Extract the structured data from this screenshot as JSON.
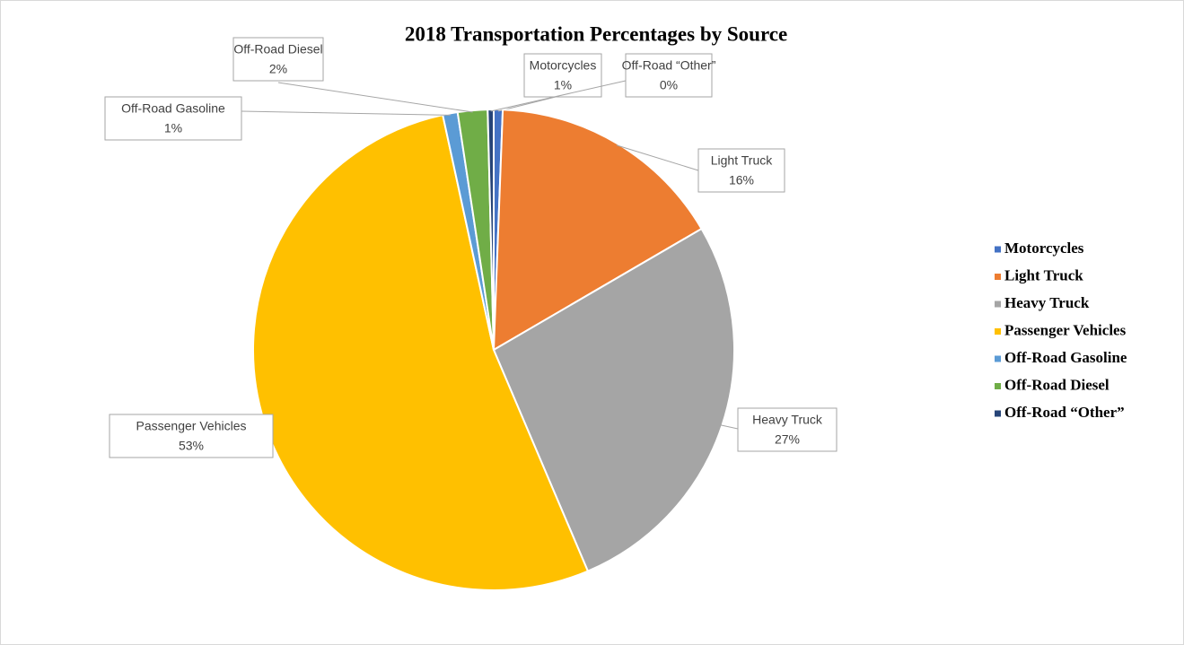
{
  "chart_data": {
    "type": "pie",
    "title": "2018 Transportation Percentages by Source",
    "categories": [
      "Motorcycles",
      "Light Truck",
      "Heavy Truck",
      "Passenger Vehicles",
      "Off-Road Gasoline",
      "Off-Road Diesel",
      "Off-Road “Other”"
    ],
    "values": [
      0.6,
      16,
      27,
      53,
      1,
      2,
      0.4
    ],
    "value_labels": [
      "1%",
      "16%",
      "27%",
      "53%",
      "1%",
      "2%",
      "0%"
    ],
    "colors": [
      "#4472c4",
      "#ed7d31",
      "#a5a5a5",
      "#ffc000",
      "#5b9bd5",
      "#70ad47",
      "#264478"
    ],
    "legend": "right"
  }
}
